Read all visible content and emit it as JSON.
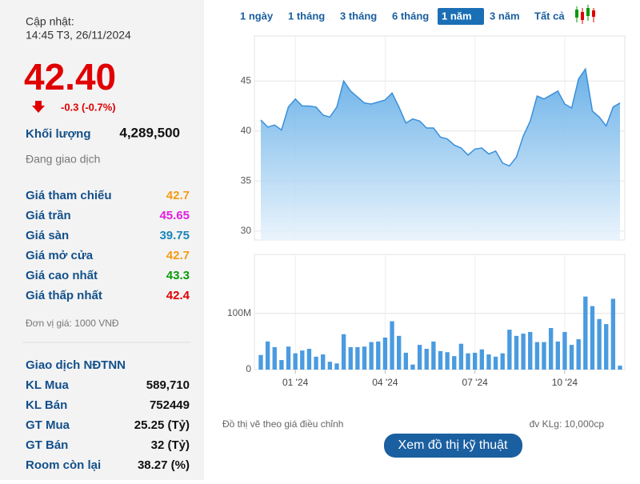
{
  "update": {
    "label": "Cập nhật:",
    "time": "14:45 T3, 26/11/2024"
  },
  "price": "42.40",
  "change": "-0.3 (-0.7%)",
  "volume": {
    "label": "Khối lượng",
    "value": "4,289,500"
  },
  "status": "Đang giao dịch",
  "price_rows": [
    {
      "label": "Giá tham chiếu",
      "value": "42.7",
      "color": "#f39c12"
    },
    {
      "label": "Giá trần",
      "value": "45.65",
      "color": "#e01ee0"
    },
    {
      "label": "Giá sàn",
      "value": "39.75",
      "color": "#1a86b8"
    },
    {
      "label": "Giá mở cửa",
      "value": "42.7",
      "color": "#f39c12"
    },
    {
      "label": "Giá cao nhất",
      "value": "43.3",
      "color": "#0a9a0a"
    },
    {
      "label": "Giá thấp nhất",
      "value": "42.4",
      "color": "#e00000"
    }
  ],
  "unit": "Đơn vị giá: 1000 VNĐ",
  "foreign": {
    "title": "Giao dịch NĐTNN",
    "rows": [
      {
        "label": "KL Mua",
        "value": "589,710"
      },
      {
        "label": "KL Bán",
        "value": "752449"
      },
      {
        "label": "GT Mua",
        "value": "25.25 (Tỷ)"
      },
      {
        "label": "GT Bán",
        "value": "32 (Tỷ)"
      },
      {
        "label": "Room còn lại",
        "value": "38.27 (%)"
      }
    ]
  },
  "tabs": {
    "items": [
      "1 ngày",
      "1 tháng",
      "3 tháng",
      "6 tháng",
      "1 năm",
      "3 năm",
      "Tất cả"
    ],
    "active": 4
  },
  "chart_data": [
    {
      "type": "area",
      "color": "#3b8fd9",
      "ylim": [
        29.1,
        49.5
      ],
      "yticks": [
        30,
        35,
        40,
        45
      ],
      "xlim": [
        0,
        52
      ],
      "values": [
        41.1,
        40.4,
        40.6,
        40.1,
        42.4,
        43.2,
        42.5,
        42.5,
        42.4,
        41.6,
        41.4,
        42.4,
        45.0,
        44.0,
        43.4,
        42.8,
        42.7,
        42.9,
        43.1,
        43.8,
        42.4,
        40.8,
        41.2,
        41.0,
        40.3,
        40.3,
        39.4,
        39.2,
        38.6,
        38.3,
        37.6,
        38.2,
        38.3,
        37.7,
        38.0,
        36.8,
        36.5,
        37.4,
        39.5,
        41.0,
        43.5,
        43.2,
        43.6,
        44.0,
        42.7,
        42.3,
        45.2,
        46.2,
        42.0,
        41.4,
        40.5,
        42.4,
        42.8
      ]
    },
    {
      "type": "bar",
      "color": "#4a9be0",
      "ylim": [
        0,
        205
      ],
      "yticks": [
        0,
        {
          "value": 100,
          "label": "100M"
        }
      ],
      "xlim": [
        0,
        52
      ],
      "xticks": [
        {
          "value": 5,
          "label": "01 '24"
        },
        {
          "value": 18,
          "label": "04 '24"
        },
        {
          "value": 31,
          "label": "07 '24"
        },
        {
          "value": 44,
          "label": "10 '24"
        }
      ],
      "values": [
        26,
        50,
        40,
        17,
        41,
        29,
        34,
        37,
        23,
        27,
        14,
        11,
        63,
        40,
        40,
        41,
        49,
        50,
        57,
        86,
        60,
        30,
        9,
        44,
        37,
        50,
        33,
        31,
        24,
        46,
        29,
        30,
        36,
        27,
        23,
        29,
        71,
        60,
        64,
        67,
        49,
        49,
        74,
        50,
        67,
        44,
        54,
        130,
        113,
        90,
        81,
        126,
        7
      ]
    }
  ],
  "notes": {
    "left": "Đồ thị vẽ theo giá điều chỉnh",
    "right": "đv KLg: 10,000cp"
  },
  "button": "Xem đồ thị kỹ thuật"
}
